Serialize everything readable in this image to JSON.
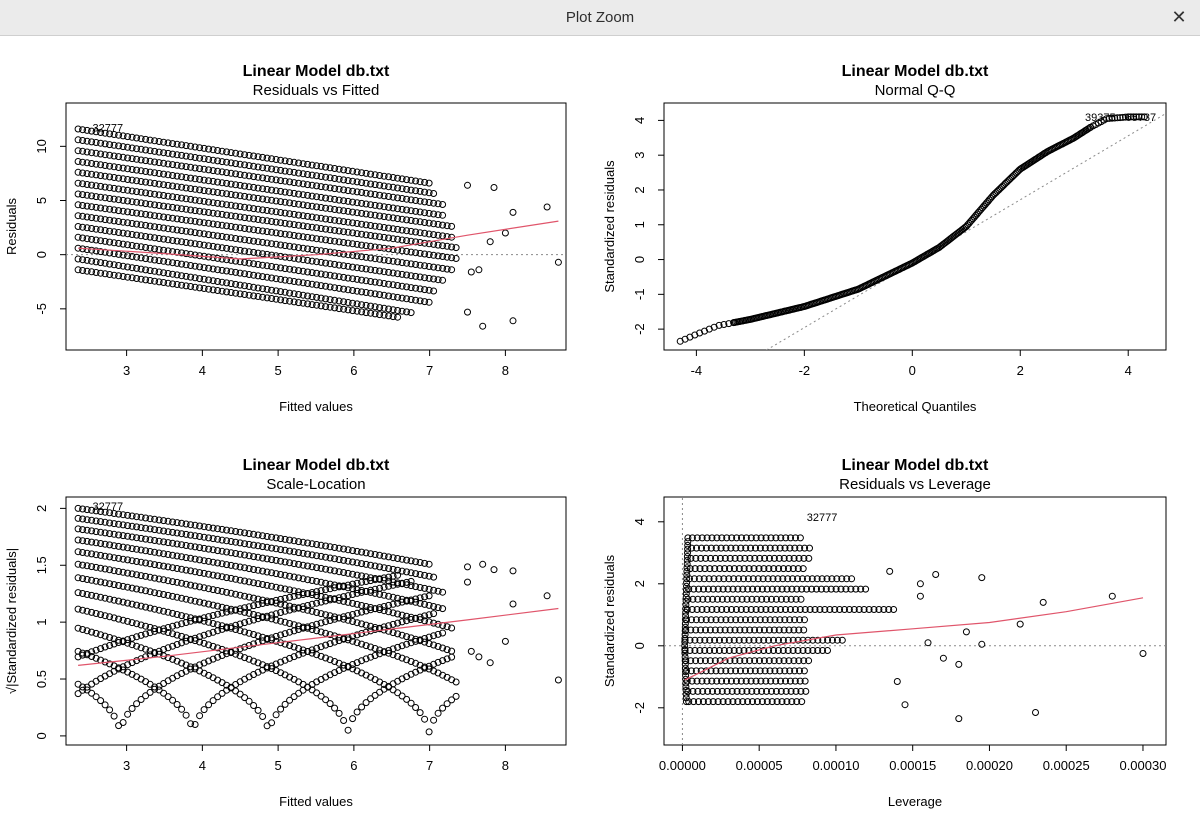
{
  "window": {
    "title": "Plot Zoom",
    "close_glyph": "✕"
  },
  "colors": {
    "points": "#000000",
    "smooth": "#e0556b",
    "reference": "#8a8a8a",
    "frame": "#000000"
  },
  "chart_data": [
    {
      "type": "scatter",
      "title": "Linear Model db.txt",
      "subtitle": "Residuals vs Fitted",
      "xlabel": "Fitted values",
      "ylabel": "Residuals",
      "xlim": [
        2.2,
        8.8
      ],
      "ylim": [
        -8.8,
        14.0
      ],
      "xticks": [
        3,
        4,
        5,
        6,
        7,
        8
      ],
      "yticks": [
        -5,
        0,
        5,
        10
      ],
      "reference_line": {
        "orientation": "horizontal",
        "value": 0,
        "style": "dotted"
      },
      "point_groups": [
        {
          "x": [
            2.36,
            7.0
          ],
          "y": [
            11.6,
            6.6
          ]
        },
        {
          "x": [
            2.36,
            7.1
          ],
          "y": [
            10.6,
            5.6
          ]
        },
        {
          "x": [
            2.36,
            7.2
          ],
          "y": [
            9.6,
            4.6
          ]
        },
        {
          "x": [
            2.36,
            7.2
          ],
          "y": [
            8.6,
            3.6
          ]
        },
        {
          "x": [
            2.36,
            7.3
          ],
          "y": [
            7.6,
            2.6
          ]
        },
        {
          "x": [
            2.36,
            7.3
          ],
          "y": [
            6.6,
            1.6
          ]
        },
        {
          "x": [
            2.36,
            7.4
          ],
          "y": [
            5.6,
            0.6
          ]
        },
        {
          "x": [
            2.36,
            7.4
          ],
          "y": [
            4.6,
            -0.4
          ]
        },
        {
          "x": [
            2.36,
            7.3
          ],
          "y": [
            3.6,
            -1.4
          ]
        },
        {
          "x": [
            2.36,
            7.2
          ],
          "y": [
            2.6,
            -2.4
          ]
        },
        {
          "x": [
            2.36,
            7.1
          ],
          "y": [
            1.6,
            -3.4
          ]
        },
        {
          "x": [
            2.36,
            7.0
          ],
          "y": [
            0.6,
            -4.4
          ]
        },
        {
          "x": [
            2.36,
            6.8
          ],
          "y": [
            -0.4,
            -5.4
          ]
        },
        {
          "x": [
            2.36,
            6.6
          ],
          "y": [
            -1.4,
            -5.8
          ]
        }
      ],
      "extra_points": [
        [
          7.5,
          6.4
        ],
        [
          7.85,
          6.2
        ],
        [
          8.1,
          3.9
        ],
        [
          8.55,
          4.4
        ],
        [
          8.0,
          2.0
        ],
        [
          7.8,
          1.2
        ],
        [
          8.7,
          -0.7
        ],
        [
          7.7,
          -6.6
        ],
        [
          8.1,
          -6.1
        ],
        [
          7.5,
          -5.3
        ],
        [
          7.65,
          -1.4
        ],
        [
          7.55,
          -1.6
        ]
      ],
      "smooth": [
        [
          2.36,
          0.6
        ],
        [
          3.5,
          0.1
        ],
        [
          4.5,
          -0.4
        ],
        [
          5.5,
          0.0
        ],
        [
          6.5,
          0.6
        ],
        [
          7.5,
          1.8
        ],
        [
          8.7,
          3.1
        ]
      ],
      "point_labels": [
        {
          "text": "32777",
          "x": 2.55,
          "y": 11.75
        }
      ]
    },
    {
      "type": "scatter",
      "title": "Linear Model db.txt",
      "subtitle": "Normal Q-Q",
      "xlabel": "Theoretical Quantiles",
      "ylabel": "Standardized residuals",
      "xlim": [
        -4.6,
        4.7
      ],
      "ylim": [
        -2.6,
        4.5
      ],
      "xticks": [
        -4,
        -2,
        0,
        2,
        4
      ],
      "yticks": [
        -2,
        -1,
        0,
        1,
        2,
        3,
        4
      ],
      "qq_curve": [
        [
          -4.3,
          -2.35
        ],
        [
          -4.0,
          -2.15
        ],
        [
          -3.6,
          -1.9
        ],
        [
          -3.0,
          -1.72
        ],
        [
          -2.0,
          -1.35
        ],
        [
          -1.0,
          -0.85
        ],
        [
          0.0,
          -0.1
        ],
        [
          0.5,
          0.35
        ],
        [
          1.0,
          0.95
        ],
        [
          1.5,
          1.85
        ],
        [
          2.0,
          2.6
        ],
        [
          2.5,
          3.1
        ],
        [
          3.0,
          3.5
        ],
        [
          3.3,
          3.8
        ],
        [
          3.6,
          4.05
        ],
        [
          4.0,
          4.1
        ],
        [
          4.3,
          4.1
        ]
      ],
      "reference_line": [
        [
          -2.7,
          -2.6
        ],
        [
          4.7,
          4.2
        ]
      ],
      "point_labels": [
        {
          "text": "39375",
          "x": 3.2,
          "y": 4.1
        },
        {
          "text": "65737",
          "x": 3.95,
          "y": 4.1
        }
      ]
    },
    {
      "type": "scatter",
      "title": "Linear Model db.txt",
      "subtitle": "Scale-Location",
      "xlabel": "Fitted values",
      "ylabel": "√|Standardized residuals|",
      "xlim": [
        2.2,
        8.8
      ],
      "ylim": [
        -0.08,
        2.1
      ],
      "xticks": [
        3,
        4,
        5,
        6,
        7,
        8
      ],
      "yticks": [
        0.0,
        0.5,
        1.0,
        1.5,
        2.0
      ],
      "smooth": [
        [
          2.36,
          0.62
        ],
        [
          3.5,
          0.7
        ],
        [
          4.5,
          0.78
        ],
        [
          5.5,
          0.86
        ],
        [
          6.5,
          0.94
        ],
        [
          7.5,
          1.02
        ],
        [
          8.7,
          1.12
        ]
      ],
      "point_labels": [
        {
          "text": "32777",
          "x": 2.55,
          "y": 2.02
        }
      ]
    },
    {
      "type": "scatter",
      "title": "Linear Model db.txt",
      "subtitle": "Residuals vs Leverage",
      "xlabel": "Leverage",
      "ylabel": "Standardized residuals",
      "xlim": [
        -1.2e-05,
        0.000315
      ],
      "ylim": [
        -3.2,
        4.8
      ],
      "xticks": [
        "0.00000",
        "0.00005",
        "0.00010",
        "0.00015",
        "0.00020",
        "0.00025",
        "0.00030"
      ],
      "xtick_values": [
        0,
        5e-05,
        0.0001,
        0.00015,
        0.0002,
        0.00025,
        0.0003
      ],
      "yticks": [
        -2,
        0,
        2,
        4
      ],
      "smooth": [
        [
          1.5e-06,
          -1.1
        ],
        [
          1e-05,
          -0.9
        ],
        [
          3e-05,
          -0.4
        ],
        [
          6e-05,
          0.0
        ],
        [
          0.0001,
          0.35
        ],
        [
          0.00015,
          0.55
        ],
        [
          0.0002,
          0.75
        ],
        [
          0.00025,
          1.1
        ],
        [
          0.0003,
          1.55
        ]
      ],
      "extra_points": [
        [
          0.000135,
          2.4
        ],
        [
          0.000155,
          2.0
        ],
        [
          0.000155,
          1.6
        ],
        [
          0.000165,
          2.3
        ],
        [
          0.000195,
          2.2
        ],
        [
          0.000235,
          1.4
        ],
        [
          0.00028,
          1.6
        ],
        [
          0.00022,
          0.7
        ],
        [
          0.0003,
          -0.25
        ],
        [
          0.000185,
          0.45
        ],
        [
          0.000195,
          0.05
        ],
        [
          0.00018,
          -2.35
        ],
        [
          0.00023,
          -2.15
        ],
        [
          0.000145,
          -1.9
        ],
        [
          0.00014,
          -1.15
        ],
        [
          0.00016,
          0.1
        ],
        [
          0.00017,
          -0.4
        ],
        [
          0.00018,
          -0.6
        ]
      ],
      "point_labels": [
        {
          "text": "32777",
          "x": 8.1e-05,
          "y": 4.15
        }
      ]
    }
  ]
}
